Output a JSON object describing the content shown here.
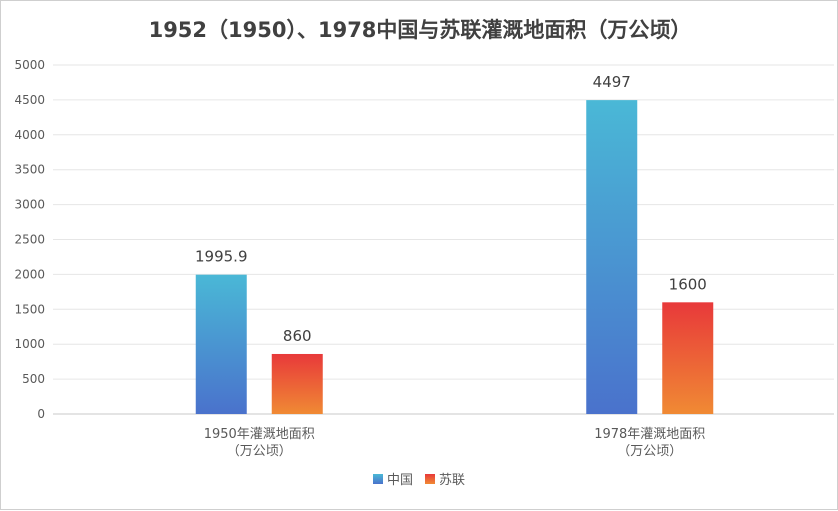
{
  "chart_data": {
    "type": "bar",
    "title": "1952（1950）、1978中国与苏联灌溉地面积（万公顷）",
    "categories": [
      [
        "1950年灌溉地面积",
        "（万公顷）"
      ],
      [
        "1978年灌溉地面积",
        "（万公顷）"
      ]
    ],
    "series": [
      {
        "name": "中国",
        "values": [
          1995.9,
          4497
        ],
        "colors": [
          "#4ab8d6",
          "#4a72cc"
        ]
      },
      {
        "name": "苏联",
        "values": [
          860,
          1600
        ],
        "colors": [
          "#e8393a",
          "#f08a34"
        ]
      }
    ],
    "data_labels": [
      [
        "1995.9",
        "4497"
      ],
      [
        "860",
        "1600"
      ]
    ],
    "ylim": [
      0,
      5000
    ],
    "yticks": [
      0,
      500,
      1000,
      1500,
      2000,
      2500,
      3000,
      3500,
      4000,
      4500,
      5000
    ],
    "grid": true,
    "legend": "bottom",
    "xlabel": "",
    "ylabel": ""
  }
}
